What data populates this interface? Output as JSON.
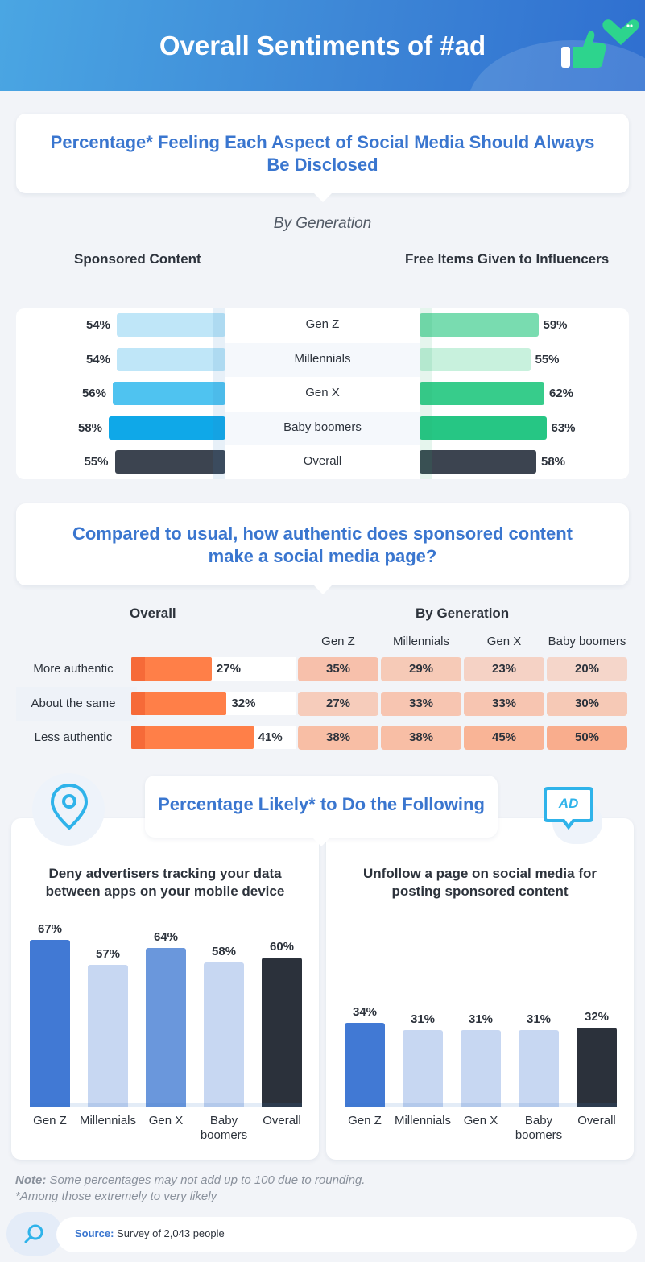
{
  "header": {
    "title": "Overall Sentiments of #ad"
  },
  "colors": {
    "header": "#3d86d6",
    "title_blue": "#3a76cf",
    "sponsored": [
      "#bfe6f8",
      "#bfe6f8",
      "#4fc3f0",
      "#0fa8e8",
      "#3c4450"
    ],
    "free_items": [
      "#79dcb0",
      "#c8f1dd",
      "#37cc8b",
      "#26c684",
      "#3c4450"
    ],
    "orange": "#ff7f48",
    "deny": [
      "#4179d4",
      "#c7d7f2",
      "#6a97dc",
      "#c7d7f2",
      "#2b313b"
    ],
    "unfollow": [
      "#4179d4",
      "#c7d7f2",
      "#c7d7f2",
      "#c7d7f2",
      "#2b313b"
    ]
  },
  "section1": {
    "title": "Percentage* Feeling Each Aspect of Social Media Should Always Be Disclosed",
    "subtitle": "By Generation",
    "left_heading": "Sponsored Content",
    "right_heading": "Free Items Given to Influencers"
  },
  "section2": {
    "title": "Compared to usual, how authentic does sponsored content make a social media page?",
    "overall_heading": "Overall",
    "generation_heading": "By Generation"
  },
  "section3": {
    "title": "Percentage Likely* to Do the Following",
    "ad_icon_text": "AD",
    "left_title": "Deny advertisers tracking your data between apps on your mobile device",
    "right_title": "Unfollow a page on social media for posting sponsored content"
  },
  "notes": {
    "note_label": "Note:",
    "note_text": "Some percentages may not add up to 100 due to rounding.",
    "asterisk": "*Among those extremely to very likely"
  },
  "source": {
    "label": "Source:",
    "text": "Survey of 2,043 people"
  },
  "chart_data": [
    {
      "type": "bar",
      "title": "Sponsored Content",
      "categories": [
        "Gen Z",
        "Millennials",
        "Gen X",
        "Baby boomers",
        "Overall"
      ],
      "values": [
        54,
        54,
        56,
        58,
        55
      ],
      "labels": [
        "54%",
        "54%",
        "56%",
        "58%",
        "55%"
      ]
    },
    {
      "type": "bar",
      "title": "Free Items Given to Influencers",
      "categories": [
        "Gen Z",
        "Millennials",
        "Gen X",
        "Baby boomers",
        "Overall"
      ],
      "values": [
        59,
        55,
        62,
        63,
        58
      ],
      "labels": [
        "59%",
        "55%",
        "62%",
        "63%",
        "58%"
      ]
    },
    {
      "type": "bar",
      "title": "Overall",
      "categories": [
        "More authentic",
        "About the same",
        "Less authentic"
      ],
      "values": [
        27,
        32,
        41
      ],
      "labels": [
        "27%",
        "32%",
        "41%"
      ]
    },
    {
      "type": "table",
      "title": "By Generation",
      "columns": [
        "Gen Z",
        "Millennials",
        "Gen X",
        "Baby boomers"
      ],
      "rows": [
        "More authentic",
        "About the same",
        "Less authentic"
      ],
      "values": [
        [
          35,
          29,
          23,
          20
        ],
        [
          27,
          33,
          33,
          30
        ],
        [
          38,
          38,
          45,
          50
        ]
      ],
      "labels": [
        [
          "35%",
          "29%",
          "23%",
          "20%"
        ],
        [
          "27%",
          "33%",
          "33%",
          "30%"
        ],
        [
          "38%",
          "38%",
          "45%",
          "50%"
        ]
      ]
    },
    {
      "type": "bar",
      "title": "Deny advertisers tracking your data between apps on your mobile device",
      "categories": [
        "Gen Z",
        "Millennials",
        "Gen X",
        "Baby boomers",
        "Overall"
      ],
      "values": [
        67,
        57,
        64,
        58,
        60
      ],
      "labels": [
        "67%",
        "57%",
        "64%",
        "58%",
        "60%"
      ]
    },
    {
      "type": "bar",
      "title": "Unfollow a page on social media for posting sponsored content",
      "categories": [
        "Gen Z",
        "Millennials",
        "Gen X",
        "Baby boomers",
        "Overall"
      ],
      "values": [
        34,
        31,
        31,
        31,
        32
      ],
      "labels": [
        "34%",
        "31%",
        "31%",
        "31%",
        "32%"
      ]
    }
  ]
}
